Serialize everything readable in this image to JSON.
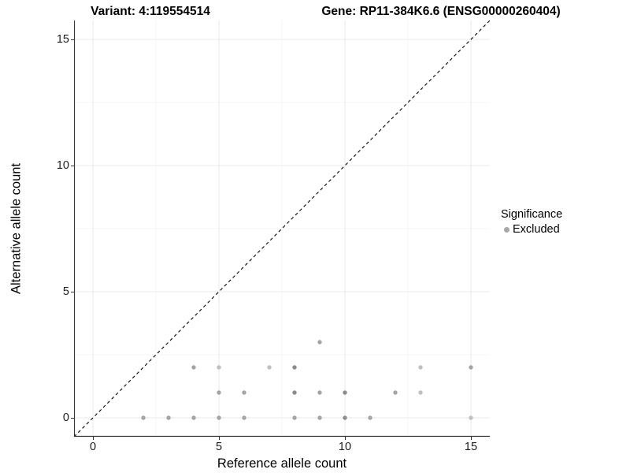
{
  "titles": {
    "variant": "Variant: 4:119554514",
    "gene": "Gene: RP11-384K6.6 (ENSG00000260404)"
  },
  "axes": {
    "x": {
      "label": "Reference allele count",
      "ticks": [
        0,
        5,
        10,
        15
      ],
      "minor_ticks": [
        2.5,
        7.5,
        12.5
      ]
    },
    "y": {
      "label": "Alternative allele count",
      "ticks": [
        0,
        5,
        10,
        15
      ],
      "minor_ticks": [
        2.5,
        7.5,
        12.5
      ]
    }
  },
  "legend": {
    "title": "Significance",
    "items": [
      {
        "label": "Excluded",
        "color": "#a8a8a8"
      }
    ]
  },
  "colors": {
    "point_light": "#bfbfbf",
    "point_med": "#a4a4a4",
    "point_dark": "#8c8c8c",
    "grid_major": "#e9e9e9",
    "grid_minor": "#f5f5f5",
    "axis_line": "#333333",
    "identity_line": "#000000",
    "background": "#ffffff"
  },
  "chart_data": {
    "type": "scatter",
    "title_left": "Variant: 4:119554514",
    "title_right": "Gene: RP11-384K6.6 (ENSG00000260404)",
    "xlabel": "Reference allele count",
    "ylabel": "Alternative allele count",
    "xlim": [
      -0.75,
      15.75
    ],
    "ylim": [
      -0.75,
      15.75
    ],
    "grid": true,
    "legend_position": "right",
    "identity_line": {
      "slope": 1,
      "intercept": 0,
      "style": "dashed"
    },
    "series_name": "Excluded",
    "points": [
      {
        "x": 2,
        "y": 0,
        "shade": "med"
      },
      {
        "x": 3,
        "y": 0,
        "shade": "med"
      },
      {
        "x": 4,
        "y": 0,
        "shade": "med"
      },
      {
        "x": 5,
        "y": 0,
        "shade": "med"
      },
      {
        "x": 6,
        "y": 0,
        "shade": "med"
      },
      {
        "x": 8,
        "y": 0,
        "shade": "med"
      },
      {
        "x": 9,
        "y": 0,
        "shade": "med"
      },
      {
        "x": 10,
        "y": 0,
        "shade": "dark"
      },
      {
        "x": 11,
        "y": 0,
        "shade": "med"
      },
      {
        "x": 15,
        "y": 0,
        "shade": "light"
      },
      {
        "x": 5,
        "y": 1,
        "shade": "med"
      },
      {
        "x": 6,
        "y": 1,
        "shade": "med"
      },
      {
        "x": 8,
        "y": 1,
        "shade": "dark"
      },
      {
        "x": 9,
        "y": 1,
        "shade": "med"
      },
      {
        "x": 10,
        "y": 1,
        "shade": "dark"
      },
      {
        "x": 12,
        "y": 1,
        "shade": "med"
      },
      {
        "x": 13,
        "y": 1,
        "shade": "light"
      },
      {
        "x": 4,
        "y": 2,
        "shade": "med"
      },
      {
        "x": 5,
        "y": 2,
        "shade": "light"
      },
      {
        "x": 7,
        "y": 2,
        "shade": "light"
      },
      {
        "x": 8,
        "y": 2,
        "shade": "dark"
      },
      {
        "x": 13,
        "y": 2,
        "shade": "light"
      },
      {
        "x": 15,
        "y": 2,
        "shade": "med"
      },
      {
        "x": 9,
        "y": 3,
        "shade": "med"
      }
    ]
  }
}
